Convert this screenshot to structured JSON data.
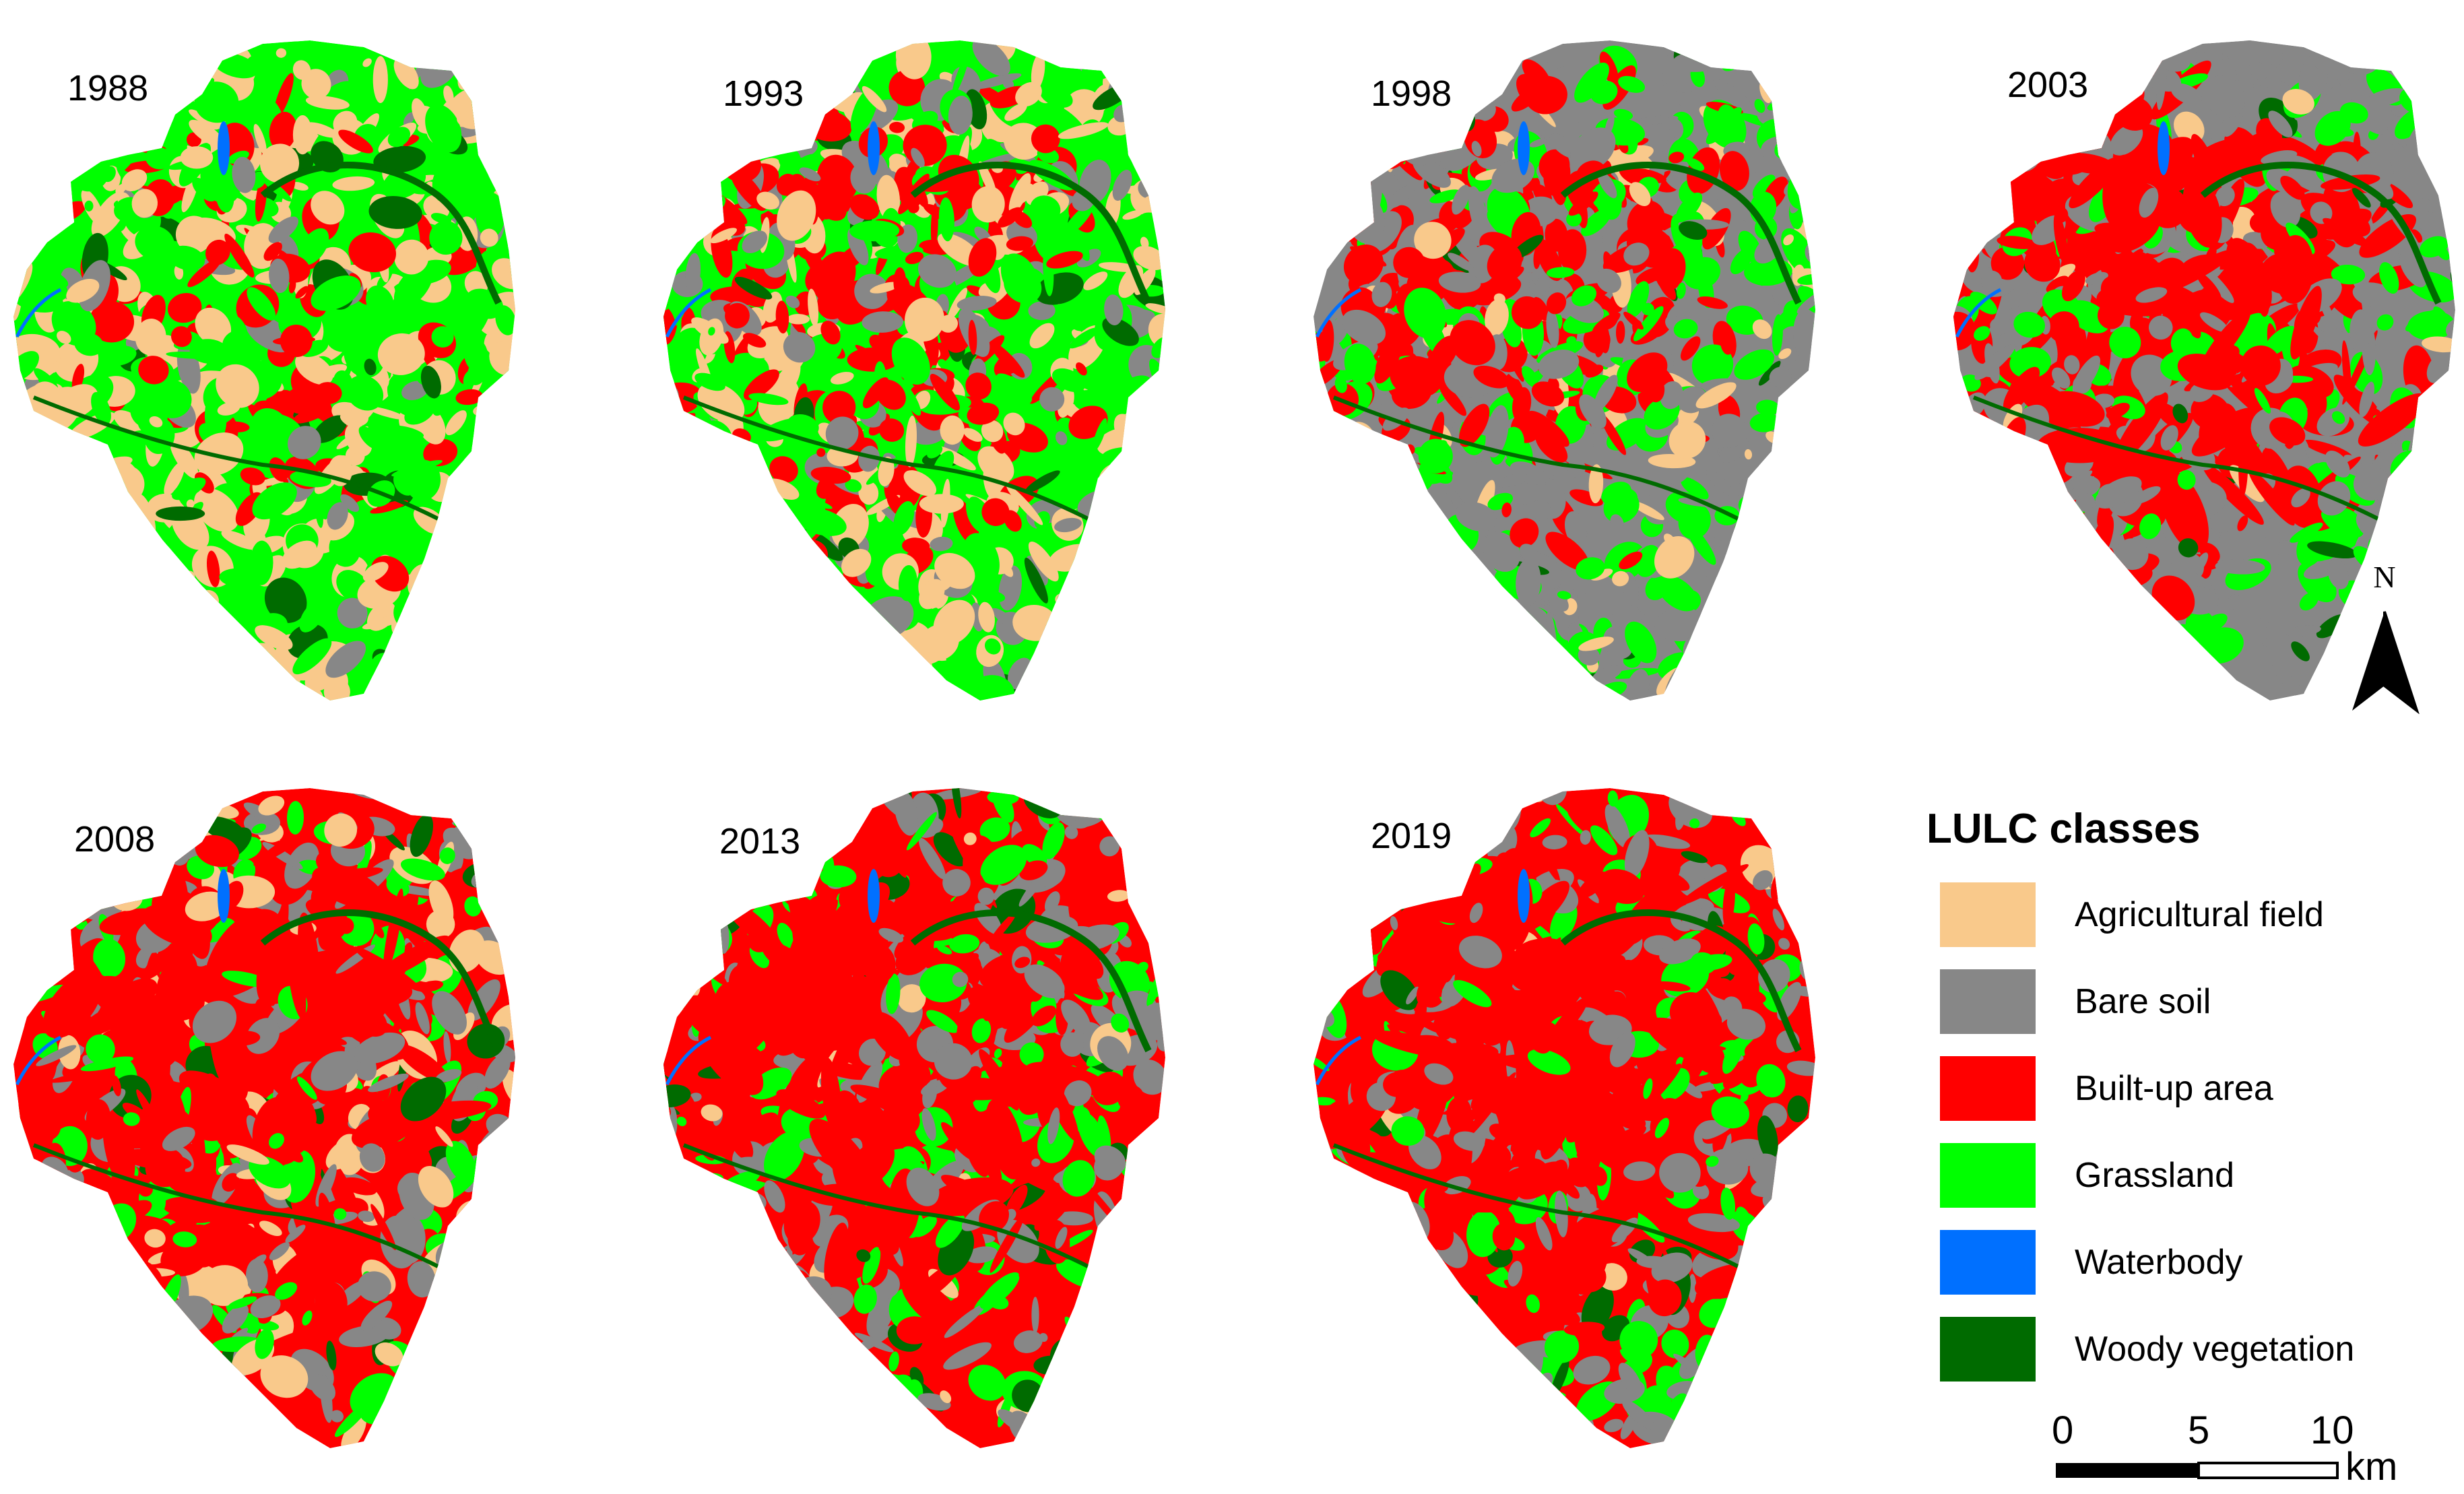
{
  "panels": [
    {
      "year": "1988"
    },
    {
      "year": "1993"
    },
    {
      "year": "1998"
    },
    {
      "year": "2003"
    },
    {
      "year": "2008"
    },
    {
      "year": "2013"
    },
    {
      "year": "2019"
    }
  ],
  "legend": {
    "title": "LULC classes",
    "items": [
      {
        "label": "Agricultural field",
        "color": "#F9C98B"
      },
      {
        "label": "Bare soil",
        "color": "#878787"
      },
      {
        "label": "Built-up area",
        "color": "#FF0000"
      },
      {
        "label": "Grassland",
        "color": "#00FF00"
      },
      {
        "label": "Waterbody",
        "color": "#0070FF"
      },
      {
        "label": "Woody vegetation",
        "color": "#006B00"
      }
    ]
  },
  "north_arrow": {
    "label": "N"
  },
  "scale_bar": {
    "ticks": [
      "0",
      "5",
      "10"
    ],
    "unit": "km"
  }
}
